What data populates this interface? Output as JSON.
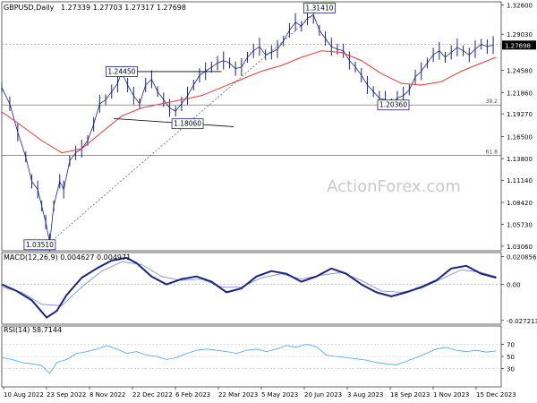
{
  "chart_data": {
    "type": "line",
    "title": "GBPUSD,Daily",
    "ohlc_label": "1.27339 1.27703 1.27317 1.27698",
    "watermark": "ActionForex.com",
    "x_labels": [
      "10 Aug 2022",
      "23 Sep 2022",
      "8 Nov 2022",
      "22 Dec 2022",
      "6 Feb 2023",
      "22 Mar 2023",
      "5 May 2023",
      "20 Jun 2023",
      "3 Aug 2023",
      "18 Sep 2023",
      "1 Nov 2023",
      "15 Dec 2023"
    ],
    "main": {
      "ylim": [
        1.025,
        1.33
      ],
      "yticks": [
        "1.32600",
        "1.29030",
        "1.24580",
        "1.21860",
        "1.19270",
        "1.16500",
        "1.13800",
        "1.11140",
        "1.08420",
        "1.05730",
        "1.03060"
      ],
      "last_price": "1.27698",
      "price_points": [
        [
          0,
          1.225
        ],
        [
          8,
          1.205
        ],
        [
          16,
          1.17
        ],
        [
          24,
          1.14
        ],
        [
          30,
          1.11
        ],
        [
          36,
          1.1
        ],
        [
          40,
          1.08
        ],
        [
          44,
          1.06
        ],
        [
          48,
          1.035
        ],
        [
          52,
          1.08
        ],
        [
          58,
          1.11
        ],
        [
          62,
          1.1
        ],
        [
          68,
          1.135
        ],
        [
          74,
          1.145
        ],
        [
          80,
          1.15
        ],
        [
          86,
          1.16
        ],
        [
          92,
          1.18
        ],
        [
          98,
          1.205
        ],
        [
          104,
          1.21
        ],
        [
          110,
          1.22
        ],
        [
          116,
          1.23
        ],
        [
          120,
          1.244
        ],
        [
          126,
          1.228
        ],
        [
          132,
          1.215
        ],
        [
          138,
          1.205
        ],
        [
          144,
          1.228
        ],
        [
          150,
          1.235
        ],
        [
          156,
          1.22
        ],
        [
          162,
          1.21
        ],
        [
          168,
          1.2
        ],
        [
          174,
          1.196
        ],
        [
          180,
          1.205
        ],
        [
          186,
          1.215
        ],
        [
          192,
          1.228
        ],
        [
          198,
          1.24
        ],
        [
          204,
          1.245
        ],
        [
          210,
          1.25
        ],
        [
          216,
          1.255
        ],
        [
          222,
          1.258
        ],
        [
          228,
          1.255
        ],
        [
          234,
          1.248
        ],
        [
          240,
          1.25
        ],
        [
          246,
          1.262
        ],
        [
          252,
          1.27
        ],
        [
          258,
          1.275
        ],
        [
          264,
          1.265
        ],
        [
          270,
          1.268
        ],
        [
          276,
          1.272
        ],
        [
          282,
          1.282
        ],
        [
          288,
          1.295
        ],
        [
          294,
          1.305
        ],
        [
          300,
          1.3
        ],
        [
          306,
          1.31
        ],
        [
          312,
          1.314
        ],
        [
          318,
          1.295
        ],
        [
          324,
          1.285
        ],
        [
          330,
          1.275
        ],
        [
          336,
          1.272
        ],
        [
          342,
          1.27
        ],
        [
          348,
          1.258
        ],
        [
          354,
          1.25
        ],
        [
          360,
          1.24
        ],
        [
          366,
          1.228
        ],
        [
          372,
          1.22
        ],
        [
          378,
          1.212
        ],
        [
          384,
          1.21
        ],
        [
          390,
          1.205
        ],
        [
          396,
          1.212
        ],
        [
          402,
          1.215
        ],
        [
          408,
          1.222
        ],
        [
          414,
          1.238
        ],
        [
          420,
          1.245
        ],
        [
          426,
          1.255
        ],
        [
          432,
          1.265
        ],
        [
          438,
          1.27
        ],
        [
          444,
          1.262
        ],
        [
          450,
          1.268
        ],
        [
          456,
          1.274
        ],
        [
          462,
          1.27
        ],
        [
          468,
          1.265
        ],
        [
          474,
          1.272
        ],
        [
          480,
          1.278
        ],
        [
          486,
          1.275
        ],
        [
          492,
          1.277
        ]
      ],
      "ma_points": [
        [
          0,
          1.195
        ],
        [
          20,
          1.178
        ],
        [
          40,
          1.16
        ],
        [
          60,
          1.145
        ],
        [
          80,
          1.15
        ],
        [
          100,
          1.17
        ],
        [
          120,
          1.19
        ],
        [
          140,
          1.2
        ],
        [
          160,
          1.205
        ],
        [
          180,
          1.21
        ],
        [
          200,
          1.215
        ],
        [
          220,
          1.225
        ],
        [
          240,
          1.235
        ],
        [
          260,
          1.245
        ],
        [
          280,
          1.252
        ],
        [
          300,
          1.262
        ],
        [
          320,
          1.27
        ],
        [
          340,
          1.268
        ],
        [
          360,
          1.258
        ],
        [
          380,
          1.242
        ],
        [
          400,
          1.23
        ],
        [
          420,
          1.228
        ],
        [
          440,
          1.232
        ],
        [
          460,
          1.245
        ],
        [
          480,
          1.255
        ],
        [
          495,
          1.262
        ]
      ],
      "horizontal_lines": [
        {
          "value": 1.278,
          "color": "#999999",
          "dash": "2,2",
          "label": ""
        },
        {
          "value": 1.2036,
          "color": "#555555",
          "dash": "",
          "label": "38.2"
        },
        {
          "value": 1.142,
          "color": "#555555",
          "dash": "",
          "label": "61.8"
        }
      ],
      "annotations": [
        {
          "label": "1.31410",
          "x": 318,
          "y": 1.3141
        },
        {
          "label": "1.24450",
          "x": 120,
          "y": 1.2445
        },
        {
          "label": "1.18060",
          "x": 186,
          "y": 1.1806
        },
        {
          "label": "1.20360",
          "x": 392,
          "y": 1.2036
        },
        {
          "label": "1.03510",
          "x": 38,
          "y": 1.0351
        }
      ]
    },
    "macd": {
      "label": "MACD(12,26,9) 0.004627 0.004971",
      "ylim": [
        -0.03,
        0.024
      ],
      "yticks": [
        "0.020856",
        "0.00",
        "-0.027213"
      ],
      "macd_points": [
        [
          0,
          0.0
        ],
        [
          15,
          -0.005
        ],
        [
          30,
          -0.012
        ],
        [
          45,
          -0.025
        ],
        [
          55,
          -0.02
        ],
        [
          65,
          -0.008
        ],
        [
          80,
          0.005
        ],
        [
          95,
          0.012
        ],
        [
          110,
          0.018
        ],
        [
          125,
          0.02
        ],
        [
          135,
          0.016
        ],
        [
          150,
          0.006
        ],
        [
          165,
          0.0
        ],
        [
          180,
          0.004
        ],
        [
          195,
          0.006
        ],
        [
          210,
          0.002
        ],
        [
          225,
          -0.006
        ],
        [
          240,
          -0.003
        ],
        [
          255,
          0.006
        ],
        [
          270,
          0.01
        ],
        [
          285,
          0.008
        ],
        [
          300,
          0.002
        ],
        [
          315,
          0.006
        ],
        [
          330,
          0.012
        ],
        [
          345,
          0.008
        ],
        [
          360,
          0.0
        ],
        [
          375,
          -0.006
        ],
        [
          390,
          -0.009
        ],
        [
          405,
          -0.006
        ],
        [
          420,
          -0.002
        ],
        [
          435,
          0.003
        ],
        [
          450,
          0.012
        ],
        [
          465,
          0.014
        ],
        [
          480,
          0.008
        ],
        [
          495,
          0.005
        ]
      ],
      "signal_points": [
        [
          0,
          -0.002
        ],
        [
          20,
          -0.006
        ],
        [
          40,
          -0.015
        ],
        [
          60,
          -0.016
        ],
        [
          80,
          -0.002
        ],
        [
          100,
          0.01
        ],
        [
          120,
          0.017
        ],
        [
          140,
          0.015
        ],
        [
          160,
          0.006
        ],
        [
          180,
          0.003
        ],
        [
          200,
          0.004
        ],
        [
          220,
          -0.002
        ],
        [
          240,
          -0.002
        ],
        [
          260,
          0.005
        ],
        [
          280,
          0.008
        ],
        [
          300,
          0.004
        ],
        [
          320,
          0.007
        ],
        [
          340,
          0.009
        ],
        [
          360,
          0.003
        ],
        [
          380,
          -0.005
        ],
        [
          400,
          -0.006
        ],
        [
          420,
          -0.003
        ],
        [
          440,
          0.004
        ],
        [
          460,
          0.011
        ],
        [
          480,
          0.009
        ],
        [
          495,
          0.006
        ]
      ]
    },
    "rsi": {
      "label": "RSI(14) 58.7144",
      "ylim": [
        0,
        100
      ],
      "yticks": [
        "70",
        "50",
        "30"
      ],
      "points": [
        [
          0,
          48
        ],
        [
          10,
          45
        ],
        [
          20,
          40
        ],
        [
          30,
          38
        ],
        [
          40,
          35
        ],
        [
          48,
          22
        ],
        [
          55,
          40
        ],
        [
          65,
          45
        ],
        [
          75,
          55
        ],
        [
          85,
          58
        ],
        [
          95,
          62
        ],
        [
          105,
          68
        ],
        [
          115,
          62
        ],
        [
          125,
          55
        ],
        [
          135,
          58
        ],
        [
          145,
          52
        ],
        [
          155,
          50
        ],
        [
          165,
          45
        ],
        [
          175,
          48
        ],
        [
          185,
          55
        ],
        [
          195,
          60
        ],
        [
          205,
          62
        ],
        [
          215,
          60
        ],
        [
          225,
          58
        ],
        [
          235,
          55
        ],
        [
          245,
          60
        ],
        [
          255,
          62
        ],
        [
          265,
          58
        ],
        [
          275,
          62
        ],
        [
          285,
          68
        ],
        [
          295,
          65
        ],
        [
          305,
          70
        ],
        [
          315,
          66
        ],
        [
          325,
          52
        ],
        [
          335,
          50
        ],
        [
          345,
          48
        ],
        [
          355,
          46
        ],
        [
          365,
          44
        ],
        [
          375,
          40
        ],
        [
          385,
          38
        ],
        [
          395,
          36
        ],
        [
          405,
          42
        ],
        [
          415,
          48
        ],
        [
          425,
          55
        ],
        [
          435,
          62
        ],
        [
          445,
          65
        ],
        [
          455,
          60
        ],
        [
          465,
          58
        ],
        [
          475,
          60
        ],
        [
          485,
          57
        ],
        [
          495,
          59
        ]
      ]
    }
  }
}
